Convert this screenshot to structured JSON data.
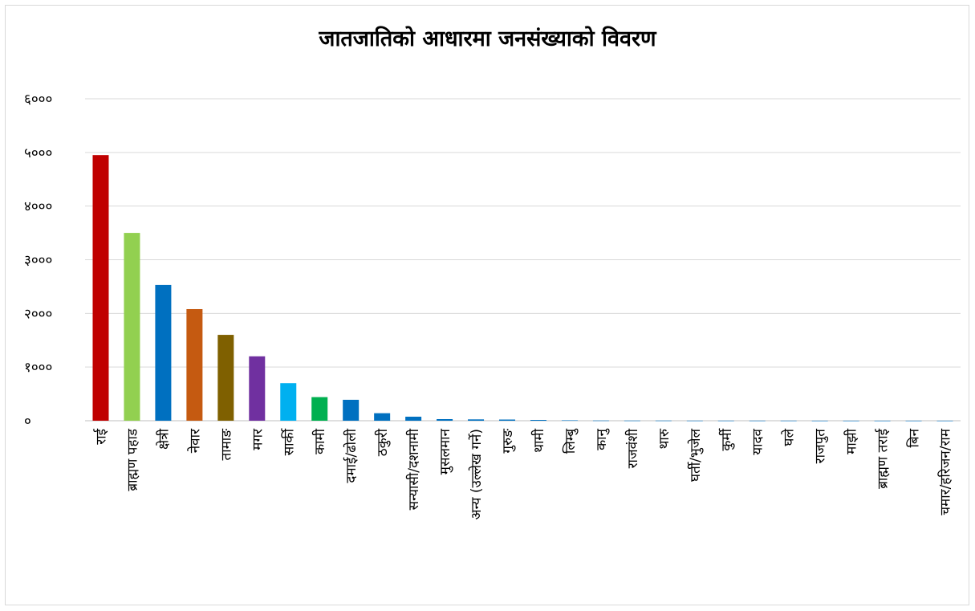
{
  "chart_data": {
    "type": "bar",
    "title": "जातजातिको आधारमा जनसंख्याको विवरण",
    "xlabel": "",
    "ylabel": "",
    "ylim": [
      0,
      6000
    ],
    "y_ticks": [
      0,
      1000,
      2000,
      3000,
      4000,
      5000,
      6000
    ],
    "y_tick_labels": [
      "०",
      "१०००",
      "२०००",
      "३०००",
      "४०००",
      "५०००",
      "६०००"
    ],
    "grid": true,
    "legend": "none",
    "categories": [
      "राई",
      "ब्राह्मण पहाड",
      "क्षेत्री",
      "नेवार",
      "तामाङ",
      "मगर",
      "सार्की",
      "कामी",
      "दमाई/ढोली",
      "ठकुरी",
      "सन्यासी/दशनामी",
      "मुसलमान",
      "अन्य (उल्लेख गर्ने)",
      "गुरुङ",
      "थामी",
      "लिम्बु",
      "कानु",
      "राजवंशी",
      "थारु",
      "घर्ती/भुजेल",
      "कुर्मी",
      "यादव",
      "घले",
      "राजपुत",
      "माझी",
      "ब्राह्मण तराई",
      "बिन",
      "चमार/हरिजन/राम"
    ],
    "values": [
      4950,
      3500,
      2530,
      2080,
      1600,
      1200,
      700,
      440,
      390,
      140,
      75,
      30,
      25,
      22,
      15,
      8,
      4,
      3,
      3,
      2,
      2,
      2,
      2,
      1,
      1,
      1,
      1,
      1
    ],
    "colors": [
      "#c00000",
      "#92d050",
      "#0070c0",
      "#c55a11",
      "#7f6000",
      "#7030a0",
      "#00b0f0",
      "#00b050",
      "#0070c0",
      "#0070c0",
      "#0070c0",
      "#0070c0",
      "#0070c0",
      "#0070c0",
      "#0070c0",
      "#0070c0",
      "#0070c0",
      "#0070c0",
      "#0070c0",
      "#0070c0",
      "#0070c0",
      "#0070c0",
      "#0070c0",
      "#0070c0",
      "#0070c0",
      "#0070c0",
      "#0070c0",
      "#0070c0"
    ],
    "gridline_color": "#d9d9d9",
    "axis_color": "#bfbfbf"
  }
}
